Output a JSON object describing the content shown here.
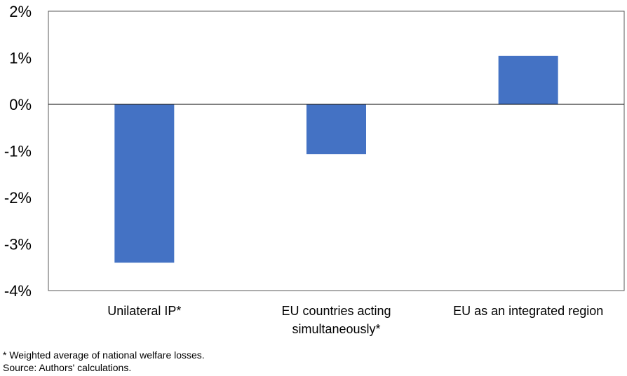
{
  "chart_data": {
    "type": "bar",
    "categories": [
      [
        "Unilateral IP*"
      ],
      [
        "EU countries acting",
        "simultaneously*"
      ],
      [
        "EU as an integrated region"
      ]
    ],
    "values": [
      -3.4,
      -1.07,
      1.04
    ],
    "yticks": [
      "2%",
      "1%",
      "0%",
      "-1%",
      "-2%",
      "-3%",
      "-4%"
    ],
    "ylim": [
      -4,
      2
    ],
    "bar_color": "#4472C4",
    "title": "",
    "xlabel": "",
    "ylabel": "",
    "grid": false
  },
  "footnotes": {
    "note": "* Weighted average of national welfare losses.",
    "source": "Source: Authors' calculations."
  }
}
